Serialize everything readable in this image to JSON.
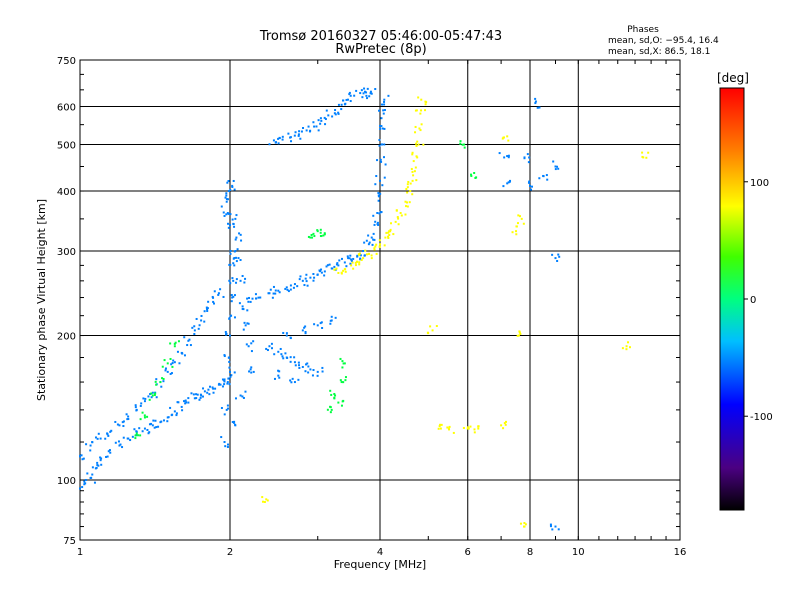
{
  "chart_data": {
    "type": "scatter",
    "title": "Tromsø 20160327 05:46:00-05:47:43",
    "subtitle": "RwPretec (8p)",
    "xlabel": "Frequency [MHz]",
    "ylabel": "Stationary phase Virtual Height [km]",
    "x_scale": "log",
    "y_scale": "log",
    "xlim": [
      1,
      16
    ],
    "ylim": [
      75,
      750
    ],
    "x_ticks": [
      "1",
      "2",
      "4",
      "6",
      "8",
      "10",
      "16"
    ],
    "x_tick_values": [
      1,
      2,
      4,
      6,
      8,
      10,
      16
    ],
    "y_ticks": [
      "75",
      "100",
      "200",
      "300",
      "400",
      "500",
      "600",
      "750"
    ],
    "y_tick_values": [
      75,
      100,
      200,
      300,
      400,
      500,
      600,
      750
    ],
    "grid": true,
    "phase_stats": {
      "header": "Phases",
      "o_line": "mean, sd,O: −95.4, 16.4",
      "x_line": "mean, sd,X: 86.5, 18.1"
    },
    "colorbar": {
      "label": "[deg]",
      "ticks": [
        "100",
        "0",
        "-100"
      ],
      "tick_values": [
        100,
        0,
        -100
      ],
      "range": [
        -180,
        180
      ],
      "colormap": "rainbow (black-purple-blue-cyan-green-yellow-red)"
    },
    "series": [
      {
        "phase_deg": -100,
        "trace": "low-frequency ramp",
        "points": [
          [
            1.0,
            96
          ],
          [
            1.02,
            98
          ],
          [
            1.05,
            101
          ],
          [
            1.08,
            106
          ],
          [
            1.1,
            110
          ],
          [
            1.15,
            114
          ],
          [
            1.2,
            118
          ],
          [
            1.25,
            122
          ],
          [
            1.3,
            126
          ],
          [
            1.35,
            128
          ],
          [
            1.4,
            130
          ],
          [
            1.45,
            132
          ],
          [
            1.5,
            135
          ],
          [
            1.55,
            139
          ],
          [
            1.6,
            142
          ],
          [
            1.65,
            145
          ],
          [
            1.7,
            148
          ],
          [
            1.75,
            150
          ],
          [
            1.8,
            152
          ],
          [
            1.85,
            155
          ],
          [
            1.9,
            158
          ],
          [
            1.95,
            162
          ],
          [
            2.0,
            168
          ]
        ]
      },
      {
        "phase_deg": -100,
        "trace": "low-frequency ramp (upper branch)",
        "points": [
          [
            1.0,
            112
          ],
          [
            1.05,
            118
          ],
          [
            1.1,
            122
          ],
          [
            1.15,
            126
          ],
          [
            1.2,
            130
          ],
          [
            1.25,
            134
          ],
          [
            1.3,
            140
          ],
          [
            1.35,
            146
          ],
          [
            1.4,
            152
          ],
          [
            1.45,
            160
          ],
          [
            1.5,
            168
          ],
          [
            1.55,
            176
          ],
          [
            1.6,
            184
          ],
          [
            1.65,
            195
          ],
          [
            1.7,
            205
          ],
          [
            1.75,
            215
          ],
          [
            1.8,
            225
          ],
          [
            1.85,
            235
          ],
          [
            1.9,
            245
          ]
        ]
      },
      {
        "phase_deg": -100,
        "trace": "vertical cluster near 2 MHz",
        "points": [
          [
            1.95,
            120
          ],
          [
            1.97,
            140
          ],
          [
            1.98,
            160
          ],
          [
            1.99,
            180
          ],
          [
            2.0,
            200
          ],
          [
            2.01,
            220
          ],
          [
            2.02,
            240
          ],
          [
            2.03,
            260
          ],
          [
            2.04,
            280
          ],
          [
            2.05,
            300
          ],
          [
            2.06,
            320
          ],
          [
            2.0,
            340
          ],
          [
            1.98,
            360
          ],
          [
            1.97,
            380
          ],
          [
            1.99,
            400
          ],
          [
            2.02,
            410
          ],
          [
            2.05,
            350
          ],
          [
            2.08,
            290
          ],
          [
            2.1,
            260
          ],
          [
            2.12,
            230
          ],
          [
            2.15,
            210
          ],
          [
            2.18,
            190
          ],
          [
            2.2,
            170
          ],
          [
            2.1,
            150
          ],
          [
            2.05,
            130
          ]
        ]
      },
      {
        "phase_deg": -100,
        "trace": "F-layer trace",
        "points": [
          [
            2.2,
            235
          ],
          [
            2.3,
            240
          ],
          [
            2.4,
            245
          ],
          [
            2.5,
            248
          ],
          [
            2.6,
            252
          ],
          [
            2.7,
            256
          ],
          [
            2.8,
            260
          ],
          [
            2.9,
            264
          ],
          [
            3.0,
            268
          ],
          [
            3.1,
            272
          ],
          [
            3.2,
            276
          ],
          [
            3.3,
            280
          ],
          [
            3.4,
            284
          ],
          [
            3.5,
            288
          ],
          [
            3.6,
            292
          ],
          [
            3.7,
            300
          ],
          [
            3.8,
            310
          ],
          [
            3.85,
            320
          ],
          [
            3.9,
            340
          ],
          [
            3.95,
            360
          ],
          [
            3.98,
            390
          ],
          [
            4.0,
            420
          ],
          [
            4.02,
            460
          ],
          [
            4.03,
            500
          ],
          [
            4.05,
            540
          ],
          [
            4.07,
            580
          ],
          [
            4.08,
            620
          ]
        ]
      },
      {
        "phase_deg": -100,
        "trace": "upper trace",
        "points": [
          [
            2.45,
            510
          ],
          [
            2.55,
            512
          ],
          [
            2.65,
            518
          ],
          [
            2.75,
            525
          ],
          [
            2.85,
            535
          ],
          [
            2.95,
            545
          ],
          [
            3.05,
            560
          ],
          [
            3.15,
            575
          ],
          [
            3.25,
            590
          ],
          [
            3.35,
            605
          ],
          [
            3.45,
            620
          ],
          [
            3.55,
            632
          ],
          [
            3.65,
            640
          ],
          [
            3.75,
            642
          ],
          [
            3.85,
            638
          ]
        ]
      },
      {
        "phase_deg": -100,
        "trace": "mid-band scatter",
        "points": [
          [
            2.4,
            190
          ],
          [
            2.5,
            185
          ],
          [
            2.6,
            180
          ],
          [
            2.7,
            176
          ],
          [
            2.8,
            172
          ],
          [
            2.9,
            170
          ],
          [
            3.0,
            168
          ],
          [
            2.6,
            200
          ],
          [
            2.8,
            205
          ],
          [
            3.0,
            210
          ],
          [
            3.2,
            215
          ],
          [
            2.5,
            165
          ],
          [
            2.7,
            160
          ]
        ]
      },
      {
        "phase_deg": 100,
        "trace": "X-mode trace",
        "points": [
          [
            3.3,
            270
          ],
          [
            3.4,
            275
          ],
          [
            3.5,
            280
          ],
          [
            3.6,
            285
          ],
          [
            3.7,
            290
          ],
          [
            3.8,
            296
          ],
          [
            3.9,
            302
          ],
          [
            4.0,
            310
          ],
          [
            4.1,
            320
          ],
          [
            4.2,
            332
          ],
          [
            4.3,
            345
          ],
          [
            4.4,
            360
          ],
          [
            4.5,
            380
          ],
          [
            4.6,
            400
          ],
          [
            4.65,
            420
          ],
          [
            4.7,
            440
          ],
          [
            4.75,
            470
          ],
          [
            4.78,
            500
          ],
          [
            4.8,
            540
          ],
          [
            4.82,
            580
          ],
          [
            4.84,
            620
          ]
        ]
      },
      {
        "phase_deg": 0,
        "trace": "scattered mid-phase points",
        "points": [
          [
            1.45,
            160
          ],
          [
            1.5,
            175
          ],
          [
            1.55,
            190
          ],
          [
            1.4,
            150
          ],
          [
            1.35,
            135
          ],
          [
            1.3,
            125
          ],
          [
            3.25,
            150
          ],
          [
            3.3,
            145
          ],
          [
            3.35,
            160
          ],
          [
            3.4,
            175
          ],
          [
            3.2,
            140
          ],
          [
            2.9,
            320
          ],
          [
            3.0,
            330
          ],
          [
            3.1,
            325
          ],
          [
            5.9,
            500
          ],
          [
            6.1,
            430
          ]
        ]
      },
      {
        "phase_deg": 100,
        "trace": "isolated points",
        "points": [
          [
            5.3,
            128
          ],
          [
            5.5,
            128
          ],
          [
            6.0,
            128
          ],
          [
            6.3,
            128
          ],
          [
            7.0,
            130
          ],
          [
            7.6,
            200
          ],
          [
            7.7,
            350
          ],
          [
            7.5,
            330
          ],
          [
            7.2,
            520
          ],
          [
            12.5,
            190
          ],
          [
            13.5,
            470
          ],
          [
            7.8,
            80
          ],
          [
            2.35,
            90
          ],
          [
            5.1,
            205
          ]
        ]
      },
      {
        "phase_deg": -100,
        "trace": "isolated high-frequency points",
        "points": [
          [
            7.1,
            470
          ],
          [
            7.8,
            470
          ],
          [
            8.0,
            410
          ],
          [
            8.5,
            430
          ],
          [
            9.0,
            450
          ],
          [
            9.0,
            290
          ],
          [
            9.0,
            80
          ],
          [
            7.2,
            415
          ],
          [
            8.2,
            610
          ]
        ]
      }
    ]
  }
}
